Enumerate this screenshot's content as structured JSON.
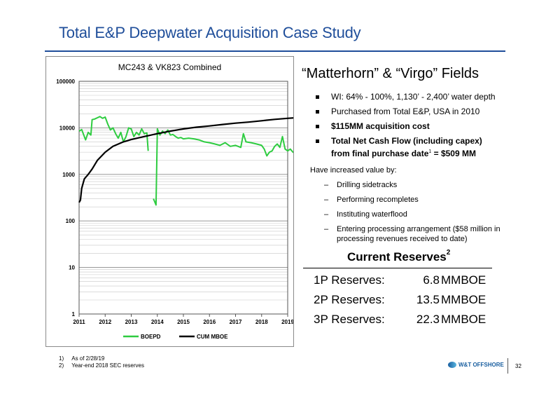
{
  "slide": {
    "title": "Total E&P Deepwater Acquisition Case Study",
    "page_number": "32"
  },
  "fields": {
    "heading": "“Matterhorn” & “Virgo” Fields",
    "bullets": [
      {
        "text": "WI: 64% - 100%, 1,130’ - 2,400’ water depth"
      },
      {
        "text": "Purchased from Total E&P, USA in 2010"
      },
      {
        "text": "$115MM acquisition cost"
      },
      {
        "line1": "Total Net Cash Flow (including capex)",
        "line2a": "from final purchase date",
        "sup": "1",
        "line2b": " = $509 MM"
      }
    ],
    "value_heading": "Have increased value by:",
    "value_items": [
      "Drilling sidetracks",
      "Performing recompletes",
      "Instituting waterflood",
      "Entering processing arrangement ($58 million in processing revenues received to date)"
    ]
  },
  "reserves": {
    "title": "Current Reserves",
    "title_sup": "2",
    "rows": [
      {
        "label": "1P Reserves:",
        "value": "6.8",
        "unit": "MMBOE"
      },
      {
        "label": "2P Reserves:",
        "value": "13.5",
        "unit": "MMBOE"
      },
      {
        "label": "3P Reserves:",
        "value": "22.3",
        "unit": "MMBOE"
      }
    ]
  },
  "footnotes": [
    "1)     As of 2/28/19",
    "2)     Year-end 2018 SEC reserves"
  ],
  "logo": {
    "text": "W&T OFFSHORE"
  },
  "colors": {
    "title_blue": "#1f4e9a",
    "boepd_green": "#2ecc40",
    "cum_black": "#000000"
  },
  "chart_data": {
    "type": "line",
    "title": "MC243 & VK823 Combined",
    "yscale": "log",
    "ylim": [
      1,
      100000
    ],
    "yticks": [
      1,
      10,
      100,
      1000,
      10000,
      100000
    ],
    "ytick_labels": [
      "1",
      "10",
      "100",
      "1000",
      "10000",
      "100000"
    ],
    "xlim": [
      2011,
      2019
    ],
    "xticks": [
      2011,
      2012,
      2013,
      2014,
      2015,
      2016,
      2017,
      2018,
      2019
    ],
    "xtick_labels": [
      "2011",
      "2012",
      "2013",
      "2014",
      "2015",
      "2016",
      "2017",
      "2018",
      "2019"
    ],
    "grid": true,
    "legend": "bottom",
    "series": [
      {
        "name": "BOEPD",
        "color": "#2ecc40",
        "segments": [
          [
            [
              2011.0,
              8500
            ],
            [
              2011.1,
              9200
            ],
            [
              2011.25,
              5500
            ],
            [
              2011.35,
              8000
            ],
            [
              2011.45,
              7000
            ],
            [
              2011.5,
              15000
            ],
            [
              2011.6,
              15500
            ],
            [
              2011.7,
              16500
            ],
            [
              2011.8,
              17500
            ],
            [
              2011.9,
              16000
            ],
            [
              2012.0,
              17000
            ],
            [
              2012.1,
              12000
            ],
            [
              2012.2,
              9000
            ],
            [
              2012.3,
              10000
            ],
            [
              2012.4,
              7500
            ],
            [
              2012.5,
              6000
            ],
            [
              2012.6,
              8000
            ],
            [
              2012.7,
              5000
            ],
            [
              2012.8,
              6500
            ],
            [
              2012.9,
              10000
            ],
            [
              2013.0,
              9500
            ],
            [
              2013.1,
              6500
            ],
            [
              2013.2,
              8000
            ],
            [
              2013.3,
              7000
            ],
            [
              2013.4,
              9500
            ],
            [
              2013.5,
              7500
            ],
            [
              2013.6,
              7800
            ],
            [
              2013.65,
              3200
            ]
          ],
          [
            [
              2013.85,
              300
            ],
            [
              2013.95,
              220
            ],
            [
              2014.0,
              9500
            ],
            [
              2014.1,
              7000
            ],
            [
              2014.2,
              8500
            ],
            [
              2014.3,
              7500
            ],
            [
              2014.4,
              9000
            ],
            [
              2014.5,
              7000
            ],
            [
              2014.6,
              7200
            ],
            [
              2014.7,
              6500
            ],
            [
              2014.8,
              6000
            ],
            [
              2014.9,
              6200
            ],
            [
              2015.0,
              5800
            ],
            [
              2015.2,
              6000
            ],
            [
              2015.4,
              5800
            ],
            [
              2015.6,
              5500
            ],
            [
              2015.8,
              5000
            ],
            [
              2016.0,
              4800
            ],
            [
              2016.2,
              4500
            ],
            [
              2016.4,
              4200
            ],
            [
              2016.6,
              4800
            ],
            [
              2016.8,
              4000
            ],
            [
              2017.0,
              4200
            ],
            [
              2017.2,
              3800
            ],
            [
              2017.3,
              7500
            ],
            [
              2017.4,
              5000
            ],
            [
              2017.6,
              4800
            ],
            [
              2017.8,
              4500
            ],
            [
              2018.0,
              4200
            ],
            [
              2018.1,
              3500
            ],
            [
              2018.2,
              2500
            ],
            [
              2018.3,
              3000
            ],
            [
              2018.4,
              3200
            ],
            [
              2018.5,
              4000
            ],
            [
              2018.6,
              4500
            ],
            [
              2018.7,
              3800
            ],
            [
              2018.8,
              6500
            ],
            [
              2018.9,
              3500
            ],
            [
              2019.0,
              3200
            ],
            [
              2019.1,
              3500
            ],
            [
              2019.2,
              3000
            ],
            [
              2019.3,
              2800
            ]
          ]
        ]
      },
      {
        "name": "CUM MBOE",
        "color": "#000000",
        "segments": [
          [
            [
              2011.0,
              250
            ],
            [
              2011.05,
              280
            ],
            [
              2011.1,
              500
            ],
            [
              2011.2,
              800
            ],
            [
              2011.35,
              1000
            ],
            [
              2011.5,
              1300
            ],
            [
              2011.7,
              2000
            ],
            [
              2012.0,
              3000
            ],
            [
              2012.3,
              4000
            ],
            [
              2012.7,
              5000
            ],
            [
              2013.0,
              5600
            ],
            [
              2013.5,
              6500
            ],
            [
              2014.0,
              7500
            ],
            [
              2014.5,
              8500
            ],
            [
              2015.0,
              9500
            ],
            [
              2015.5,
              10300
            ],
            [
              2016.0,
              11000
            ],
            [
              2016.5,
              11800
            ],
            [
              2017.0,
              12600
            ],
            [
              2017.5,
              13300
            ],
            [
              2018.0,
              14200
            ],
            [
              2018.5,
              15200
            ],
            [
              2019.0,
              16000
            ],
            [
              2019.3,
              16500
            ]
          ]
        ]
      }
    ]
  }
}
